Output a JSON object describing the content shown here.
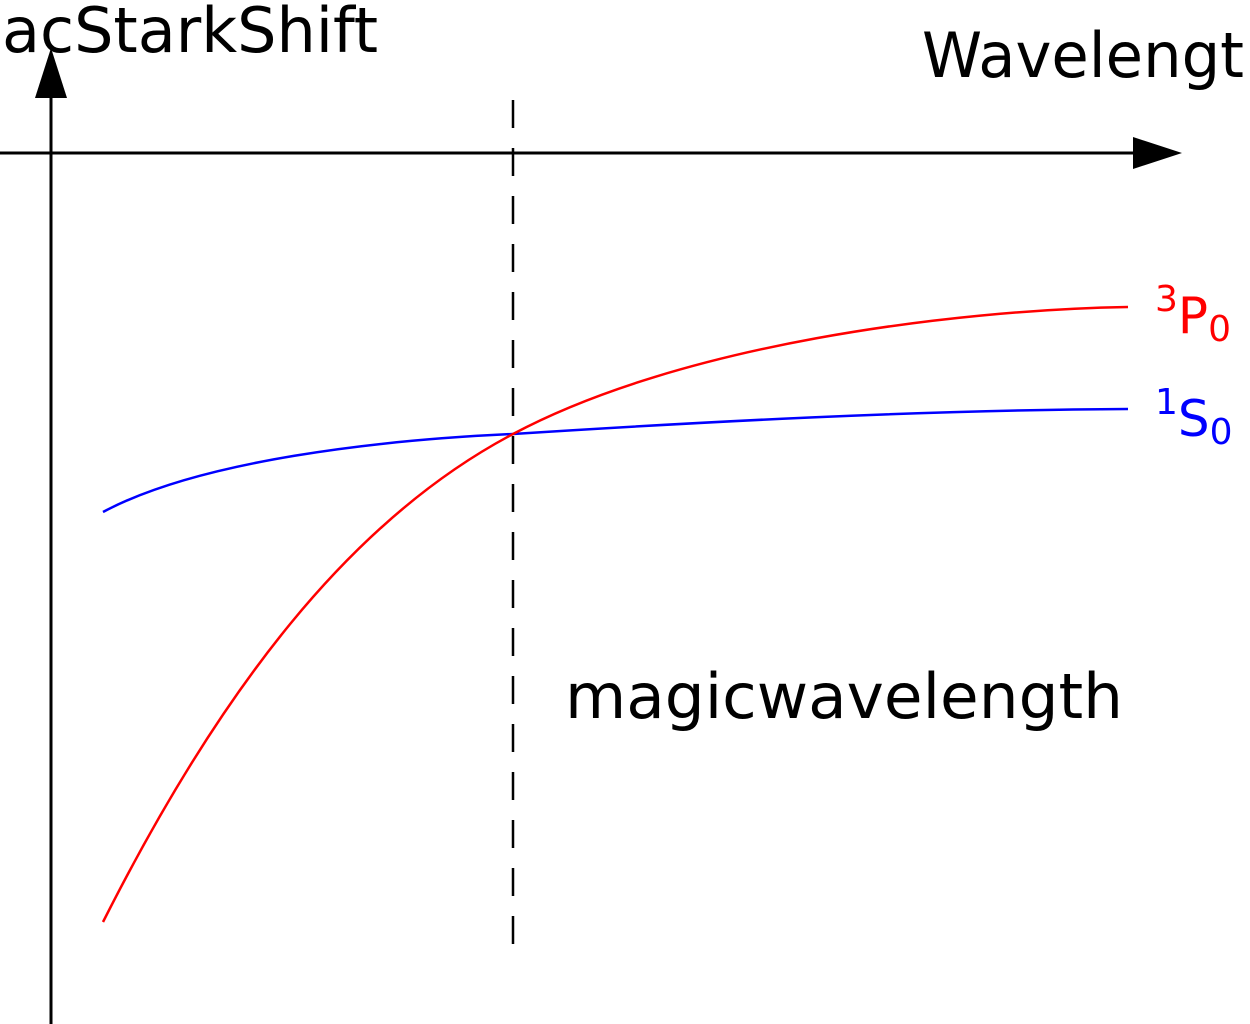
{
  "labels": {
    "y_axis": "acStarkShift",
    "x_axis": "Wavelengt",
    "annotation": "magicwavelength"
  },
  "states": {
    "p0": {
      "sup": "3",
      "letter": "P",
      "sub": "0",
      "color": "#ff0000"
    },
    "s0": {
      "sup": "1",
      "letter": "S",
      "sub": "0",
      "color": "#0000ff"
    }
  },
  "colors": {
    "axes": "#000000",
    "p0_curve": "#ff0000",
    "s0_curve": "#0000ff"
  }
}
